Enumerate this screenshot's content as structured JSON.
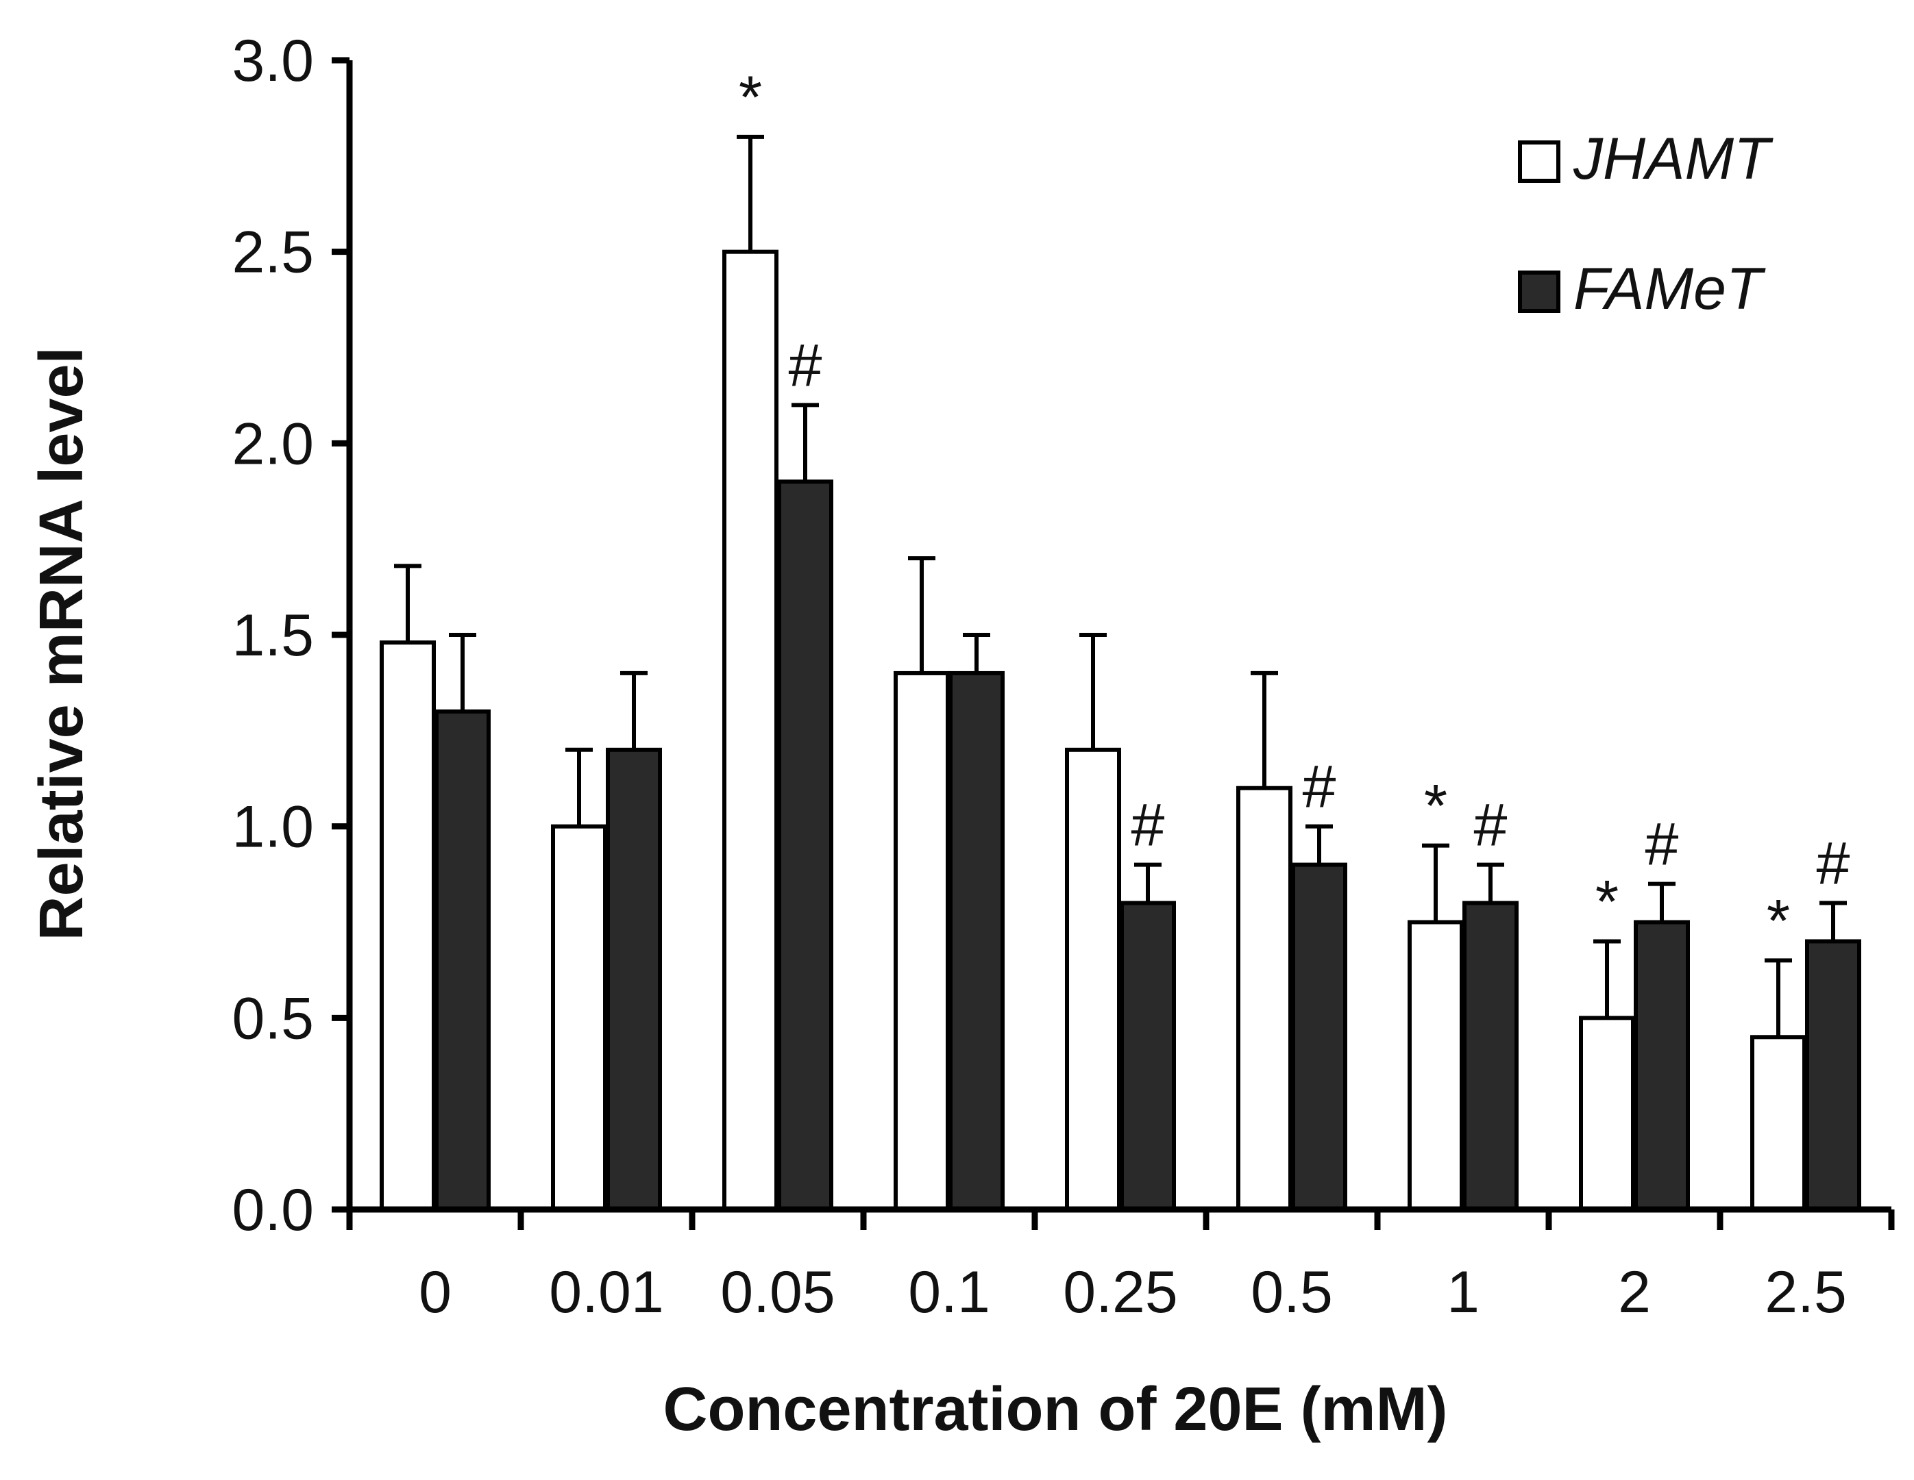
{
  "chart_data": {
    "type": "bar",
    "title": "",
    "xlabel": "Concentration of 20E (mM)",
    "ylabel": "Relative mRNA level",
    "categories": [
      "0",
      "0.01",
      "0.05",
      "0.1",
      "0.25",
      "0.5",
      "1",
      "2",
      "2.5"
    ],
    "ylim": [
      0,
      3.0
    ],
    "yticks": [
      "0.0",
      "0.5",
      "1.0",
      "1.5",
      "2.0",
      "2.5",
      "3.0"
    ],
    "legend_position": "top-right",
    "series": [
      {
        "name": "JHAMT",
        "fill": "#ffffff",
        "values": [
          1.48,
          1.0,
          2.5,
          1.4,
          1.2,
          1.1,
          0.75,
          0.5,
          0.45
        ],
        "errors": [
          0.2,
          0.2,
          0.3,
          0.3,
          0.3,
          0.3,
          0.2,
          0.2,
          0.2
        ],
        "markers": [
          "",
          "",
          "*",
          "",
          "",
          "",
          "*",
          "*",
          "*"
        ]
      },
      {
        "name": "FAMeT",
        "fill": "#2a2a2a",
        "values": [
          1.3,
          1.2,
          1.9,
          1.4,
          0.8,
          0.9,
          0.8,
          0.75,
          0.7
        ],
        "errors": [
          0.2,
          0.2,
          0.2,
          0.1,
          0.1,
          0.1,
          0.1,
          0.1,
          0.1
        ],
        "markers": [
          "",
          "",
          "#",
          "",
          "#",
          "#",
          "#",
          "#",
          "#"
        ]
      }
    ]
  }
}
